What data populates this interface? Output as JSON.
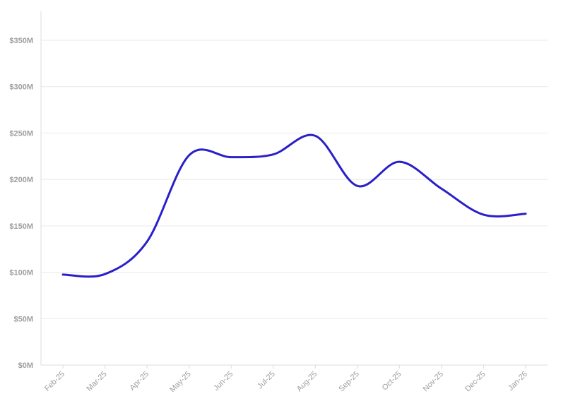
{
  "chart_data": {
    "type": "line",
    "title": "",
    "xlabel": "",
    "ylabel": "",
    "categories": [
      "Feb-25",
      "Mar-25",
      "Apr-25",
      "May-25",
      "Jun-25",
      "Jul-25",
      "Aug-25",
      "Sep-25",
      "Oct-25",
      "Nov-25",
      "Dec-25",
      "Jan-26"
    ],
    "y_ticks": [
      0,
      50,
      100,
      150,
      200,
      250,
      300,
      350
    ],
    "y_tick_labels": [
      "$0M",
      "$50M",
      "$100M",
      "$150M",
      "$200M",
      "$250M",
      "$300M",
      "$350M"
    ],
    "ylim": [
      0,
      350
    ],
    "series": [
      {
        "values": [
          97.5,
          98,
          133,
          226,
          224,
          227,
          247,
          193,
          219,
          190,
          162,
          163
        ],
        "color": "#2a1fc8"
      }
    ],
    "grid": "horizontal",
    "legend": "none"
  }
}
